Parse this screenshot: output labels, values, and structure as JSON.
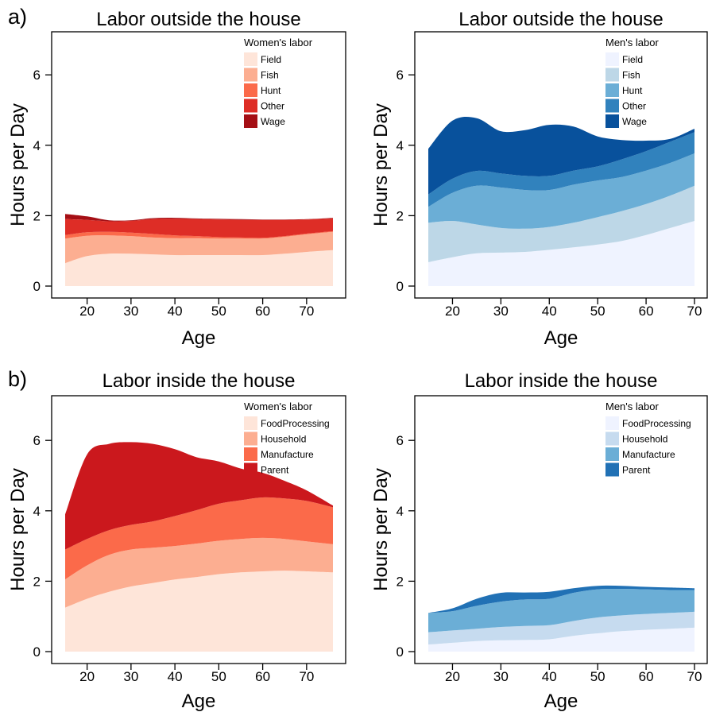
{
  "panel_labels": [
    "a)",
    "b)"
  ],
  "chart_data": [
    {
      "type": "area",
      "stacked": true,
      "title": "Labor outside the house",
      "xlabel": "Age",
      "ylabel": "Hours per Day",
      "xlim": [
        15,
        76
      ],
      "ylim": [
        0,
        7
      ],
      "xticks": [
        20,
        30,
        40,
        50,
        60,
        70
      ],
      "yticks": [
        0,
        2,
        4,
        6
      ],
      "grid": false,
      "legend": {
        "title": "Women's labor",
        "position": "top-right"
      },
      "x": [
        15,
        20,
        25,
        30,
        35,
        40,
        45,
        50,
        55,
        60,
        65,
        70,
        76
      ],
      "series": [
        {
          "name": "Field",
          "color": "#fee5d9",
          "values": [
            0.65,
            0.85,
            0.92,
            0.92,
            0.9,
            0.88,
            0.88,
            0.88,
            0.88,
            0.88,
            0.92,
            0.97,
            1.02
          ]
        },
        {
          "name": "Fish",
          "color": "#fcae91",
          "values": [
            0.7,
            0.58,
            0.52,
            0.5,
            0.48,
            0.48,
            0.48,
            0.47,
            0.47,
            0.47,
            0.48,
            0.5,
            0.52
          ]
        },
        {
          "name": "Hunt",
          "color": "#fb6a4a",
          "values": [
            0.1,
            0.1,
            0.1,
            0.1,
            0.1,
            0.08,
            0.06,
            0.04,
            0.03,
            0.02,
            0.02,
            0.02,
            0.02
          ]
        },
        {
          "name": "Other",
          "color": "#de2d26",
          "values": [
            0.45,
            0.35,
            0.3,
            0.33,
            0.42,
            0.47,
            0.48,
            0.5,
            0.5,
            0.51,
            0.46,
            0.4,
            0.36
          ]
        },
        {
          "name": "Wage",
          "color": "#a50f15",
          "values": [
            0.15,
            0.1,
            0.03,
            0.02,
            0.03,
            0.03,
            0.02,
            0.02,
            0.02,
            0.01,
            0.01,
            0.01,
            0.02
          ]
        }
      ]
    },
    {
      "type": "area",
      "stacked": true,
      "title": "Labor outside the house",
      "xlabel": "Age",
      "ylabel": "Hours per Day",
      "xlim": [
        15,
        70
      ],
      "ylim": [
        0,
        7
      ],
      "xticks": [
        20,
        30,
        40,
        50,
        60,
        70
      ],
      "yticks": [
        0,
        2,
        4,
        6
      ],
      "grid": false,
      "legend": {
        "title": "Men's labor",
        "position": "top-right"
      },
      "x": [
        15,
        20,
        25,
        30,
        35,
        40,
        45,
        50,
        55,
        60,
        65,
        70
      ],
      "series": [
        {
          "name": "Field",
          "color": "#eff3ff",
          "values": [
            0.68,
            0.82,
            0.93,
            0.95,
            0.97,
            1.03,
            1.1,
            1.18,
            1.28,
            1.45,
            1.65,
            1.85
          ]
        },
        {
          "name": "Fish",
          "color": "#bdd7e7",
          "values": [
            1.12,
            1.03,
            0.82,
            0.7,
            0.66,
            0.65,
            0.7,
            0.78,
            0.85,
            0.88,
            0.92,
            1.0
          ]
        },
        {
          "name": "Hunt",
          "color": "#6baed6",
          "values": [
            0.45,
            0.8,
            1.1,
            1.15,
            1.1,
            1.05,
            1.08,
            1.04,
            0.97,
            0.95,
            0.93,
            0.92
          ]
        },
        {
          "name": "Other",
          "color": "#3182bd",
          "values": [
            0.35,
            0.4,
            0.42,
            0.4,
            0.4,
            0.4,
            0.4,
            0.4,
            0.5,
            0.55,
            0.6,
            0.6
          ]
        },
        {
          "name": "Wage",
          "color": "#08519c",
          "values": [
            1.3,
            1.65,
            1.5,
            1.2,
            1.3,
            1.45,
            1.25,
            0.85,
            0.55,
            0.3,
            0.08,
            0.1
          ]
        }
      ]
    },
    {
      "type": "area",
      "stacked": true,
      "title": "Labor inside the house",
      "xlabel": "Age",
      "ylabel": "Hours per Day",
      "xlim": [
        15,
        76
      ],
      "ylim": [
        0,
        7
      ],
      "xticks": [
        20,
        30,
        40,
        50,
        60,
        70
      ],
      "yticks": [
        0,
        2,
        4,
        6
      ],
      "grid": false,
      "legend": {
        "title": "Women's labor",
        "position": "top-right"
      },
      "x": [
        15,
        20,
        25,
        30,
        35,
        40,
        45,
        50,
        55,
        60,
        65,
        70,
        76
      ],
      "series": [
        {
          "name": "FoodProcessing",
          "color": "#fee5d9",
          "values": [
            1.25,
            1.5,
            1.7,
            1.85,
            1.95,
            2.05,
            2.12,
            2.2,
            2.25,
            2.28,
            2.3,
            2.28,
            2.25
          ]
        },
        {
          "name": "Household",
          "color": "#fcae91",
          "values": [
            0.8,
            0.95,
            1.05,
            1.05,
            1.0,
            0.95,
            0.95,
            0.95,
            0.95,
            0.95,
            0.9,
            0.85,
            0.8
          ]
        },
        {
          "name": "Manufacture",
          "color": "#fb6a4a",
          "values": [
            0.85,
            0.75,
            0.7,
            0.7,
            0.75,
            0.85,
            0.95,
            1.05,
            1.1,
            1.15,
            1.15,
            1.15,
            1.05
          ]
        },
        {
          "name": "Parent",
          "color": "#cb181d",
          "values": [
            1.0,
            2.4,
            2.45,
            2.35,
            2.2,
            1.9,
            1.5,
            1.2,
            0.9,
            0.7,
            0.5,
            0.3,
            0.05
          ]
        }
      ]
    },
    {
      "type": "area",
      "stacked": true,
      "title": "Labor inside the house",
      "xlabel": "Age",
      "ylabel": "Hours per Day",
      "xlim": [
        15,
        70
      ],
      "ylim": [
        0,
        7
      ],
      "xticks": [
        20,
        30,
        40,
        50,
        60,
        70
      ],
      "yticks": [
        0,
        2,
        4,
        6
      ],
      "grid": false,
      "legend": {
        "title": "Men's labor",
        "position": "top-right"
      },
      "x": [
        15,
        20,
        25,
        30,
        35,
        40,
        45,
        50,
        55,
        60,
        65,
        70
      ],
      "series": [
        {
          "name": "FoodProcessing",
          "color": "#eff3ff",
          "values": [
            0.2,
            0.25,
            0.3,
            0.32,
            0.33,
            0.35,
            0.45,
            0.52,
            0.58,
            0.62,
            0.65,
            0.68
          ]
        },
        {
          "name": "Household",
          "color": "#c6dbef",
          "values": [
            0.35,
            0.35,
            0.35,
            0.38,
            0.4,
            0.4,
            0.42,
            0.45,
            0.45,
            0.45,
            0.45,
            0.45
          ]
        },
        {
          "name": "Manufacture",
          "color": "#6baed6",
          "values": [
            0.55,
            0.55,
            0.65,
            0.72,
            0.75,
            0.75,
            0.8,
            0.8,
            0.75,
            0.7,
            0.65,
            0.62
          ]
        },
        {
          "name": "Parent",
          "color": "#2171b5",
          "values": [
            0.0,
            0.08,
            0.2,
            0.25,
            0.2,
            0.2,
            0.13,
            0.1,
            0.09,
            0.07,
            0.07,
            0.05
          ]
        }
      ]
    }
  ]
}
